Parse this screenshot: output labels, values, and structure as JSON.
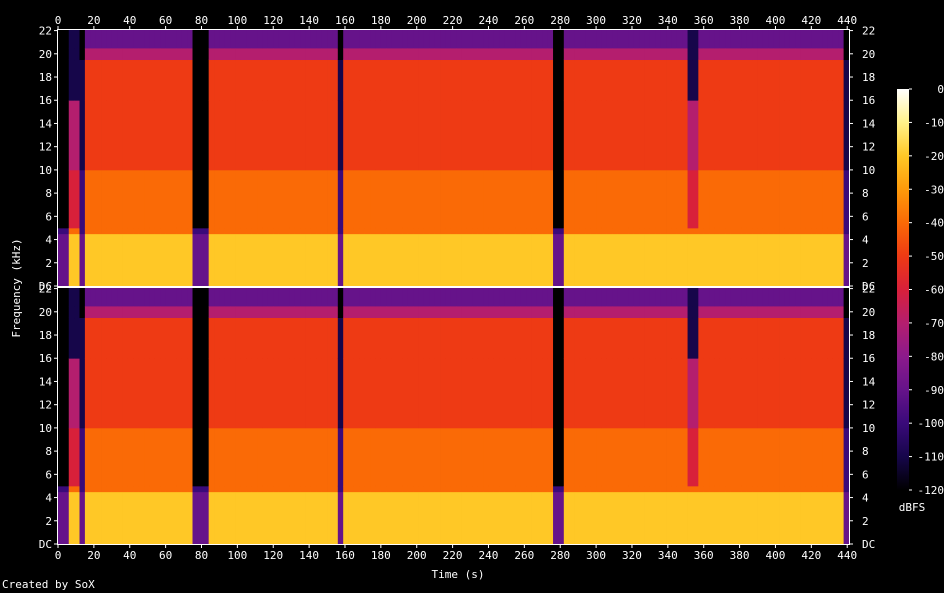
{
  "chart_data": {
    "type": "heatmap",
    "title": "",
    "xlabel": "Time (s)",
    "ylabel": "Frequency (kHz)",
    "xlim": [
      0,
      441
    ],
    "ylim": [
      0,
      22.05
    ],
    "x_ticks": [
      "0",
      "20",
      "40",
      "60",
      "80",
      "100",
      "120",
      "140",
      "160",
      "180",
      "200",
      "220",
      "240",
      "260",
      "280",
      "300",
      "320",
      "340",
      "360",
      "380",
      "400",
      "420",
      "440"
    ],
    "x_tick_values": [
      0,
      20,
      40,
      60,
      80,
      100,
      120,
      140,
      160,
      180,
      200,
      220,
      240,
      260,
      280,
      300,
      320,
      340,
      360,
      380,
      400,
      420,
      440
    ],
    "y_ticks": [
      "DC",
      "2",
      "4",
      "6",
      "8",
      "10",
      "12",
      "14",
      "16",
      "18",
      "20",
      "22"
    ],
    "y_tick_values": [
      0,
      2,
      4,
      6,
      8,
      10,
      12,
      14,
      16,
      18,
      20,
      22
    ],
    "colorbar": {
      "label": "dBFS",
      "ticks": [
        "0",
        "-10",
        "-20",
        "-30",
        "-40",
        "-50",
        "-60",
        "-70",
        "-80",
        "-90",
        "-100",
        "-110",
        "-120"
      ],
      "tick_values": [
        0,
        -10,
        -20,
        -30,
        -40,
        -50,
        -60,
        -70,
        -80,
        -90,
        -100,
        -110,
        -120
      ],
      "range": [
        -120,
        0
      ],
      "colors": [
        "#000000",
        "#16064a",
        "#3a0a7a",
        "#66138a",
        "#8c1a8c",
        "#b41e6e",
        "#d8203a",
        "#ee3a14",
        "#fa6a06",
        "#fe9a0a",
        "#ffc826",
        "#fff28a",
        "#ffffff"
      ]
    },
    "channels": [
      {
        "name": "",
        "panel": "top"
      },
      {
        "name": "",
        "panel": "bottom"
      }
    ],
    "quiet_segments_s": [
      [
        0,
        6
      ],
      [
        12,
        13
      ],
      [
        75,
        82
      ],
      [
        156,
        157
      ],
      [
        275,
        282
      ],
      [
        436,
        441
      ]
    ],
    "lowpass_16k_segments_s": [
      [
        0,
        12
      ],
      [
        75,
        82
      ],
      [
        275,
        282
      ],
      [
        350,
        356
      ]
    ],
    "band_energy_dBFS": [
      {
        "f_khz": [
          0,
          4.5
        ],
        "level": -22
      },
      {
        "f_khz": [
          4.5,
          5.0
        ],
        "level": -45
      },
      {
        "f_khz": [
          5.0,
          10
        ],
        "level": -38
      },
      {
        "f_khz": [
          10,
          16
        ],
        "level": -48
      },
      {
        "f_khz": [
          16,
          19.5
        ],
        "level": -55
      },
      {
        "f_khz": [
          19.5,
          20.5
        ],
        "level": -70
      },
      {
        "f_khz": [
          20.5,
          22.05
        ],
        "level": -95
      }
    ]
  },
  "footer": {
    "credit": "Created by SoX"
  }
}
